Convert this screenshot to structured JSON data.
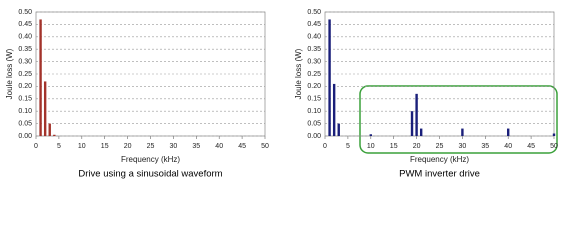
{
  "chart_data": [
    {
      "type": "bar",
      "title": "Drive using a sinusoidal waveform",
      "x_label": "Frequency (kHz)",
      "y_label": "Joule loss (W)",
      "color": "#a3332b",
      "x": [
        1,
        2,
        3,
        4
      ],
      "values": [
        0.47,
        0.22,
        0.05,
        0.005
      ],
      "xlim": [
        0,
        50
      ],
      "xticks": [
        0,
        5,
        10,
        15,
        20,
        25,
        30,
        35,
        40,
        45,
        50
      ],
      "ylim": [
        0,
        0.5
      ],
      "yticks": [
        {
          "value": 0,
          "label": "0.00"
        },
        {
          "value": 0.05,
          "label": "0.05"
        },
        {
          "value": 0.1,
          "label": "0.10"
        },
        {
          "value": 0.15,
          "label": "0.15"
        },
        {
          "value": 0.2,
          "label": "0.20"
        },
        {
          "value": 0.25,
          "label": "0.25"
        },
        {
          "value": 0.3,
          "label": "0.30"
        },
        {
          "value": 0.35,
          "label": "0.35"
        },
        {
          "value": 0.4,
          "label": "0.40"
        },
        {
          "value": 0.45,
          "label": "0.45"
        },
        {
          "value": 0.5,
          "label": "0.50"
        }
      ],
      "grid": true
    },
    {
      "type": "bar",
      "title": "PWM inverter drive",
      "x_label": "Frequency (kHz)",
      "y_label": "Joule loss (W)",
      "color": "#1a1f7a",
      "x": [
        1,
        2,
        3,
        10,
        19,
        20,
        21,
        30,
        40,
        50
      ],
      "values": [
        0.47,
        0.21,
        0.05,
        0.007,
        0.1,
        0.17,
        0.03,
        0.03,
        0.03,
        0.01
      ],
      "xlim": [
        0,
        50
      ],
      "xticks": [
        0,
        5,
        10,
        15,
        20,
        25,
        30,
        35,
        40,
        45,
        50
      ],
      "ylim": [
        0,
        0.5
      ],
      "yticks": [
        {
          "value": 0,
          "label": "0.00"
        },
        {
          "value": 0.05,
          "label": "0.05"
        },
        {
          "value": 0.1,
          "label": "0.10"
        },
        {
          "value": 0.15,
          "label": "0.15"
        },
        {
          "value": 0.2,
          "label": "0.20"
        },
        {
          "value": 0.25,
          "label": "0.25"
        },
        {
          "value": 0.3,
          "label": "0.30"
        },
        {
          "value": 0.35,
          "label": "0.35"
        },
        {
          "value": 0.4,
          "label": "0.40"
        },
        {
          "value": 0.45,
          "label": "0.45"
        },
        {
          "value": 0.5,
          "label": "0.50"
        }
      ],
      "grid": true
    }
  ]
}
